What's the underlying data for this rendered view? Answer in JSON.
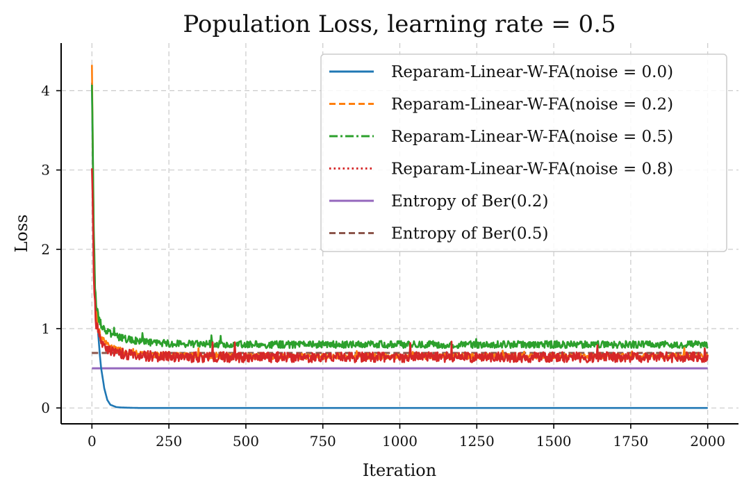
{
  "chart_data": {
    "type": "line",
    "title": "Population Loss, learning rate = 0.5",
    "xlabel": "Iteration",
    "ylabel": "Loss",
    "xlim": [
      -100,
      2100
    ],
    "ylim": [
      -0.2,
      4.6
    ],
    "x_ticks": [
      0,
      250,
      500,
      750,
      1000,
      1250,
      1500,
      1750,
      2000
    ],
    "y_ticks": [
      0,
      1,
      2,
      3,
      4
    ],
    "grid": true,
    "legend_position": "top-right",
    "series": [
      {
        "name": "Reparam-Linear-W-FA(noise = 0.0)",
        "color": "#1f77b4",
        "style": "solid",
        "x": [
          0,
          3,
          6,
          10,
          15,
          20,
          25,
          30,
          40,
          50,
          60,
          80,
          100,
          150,
          300,
          600,
          1000,
          1500,
          2000
        ],
        "y": [
          4.1,
          3.0,
          2.1,
          1.5,
          1.2,
          0.95,
          0.7,
          0.5,
          0.25,
          0.1,
          0.04,
          0.01,
          0.005,
          0.0,
          0.0,
          0.0,
          0.0,
          0.0,
          0.0
        ]
      },
      {
        "name": "Reparam-Linear-W-FA(noise = 0.2)",
        "color": "#ff7f0e",
        "style": "dashed",
        "x": [
          0,
          3,
          6,
          10,
          15,
          20,
          30,
          50,
          80,
          120,
          200,
          300,
          500,
          800,
          1200,
          1600,
          2000
        ],
        "y": [
          4.35,
          3.2,
          2.0,
          1.4,
          1.15,
          1.0,
          0.88,
          0.8,
          0.74,
          0.7,
          0.67,
          0.66,
          0.65,
          0.65,
          0.65,
          0.65,
          0.65
        ]
      },
      {
        "name": "Reparam-Linear-W-FA(noise = 0.5)",
        "color": "#2ca02c",
        "style": "dashdot",
        "x": [
          0,
          3,
          6,
          10,
          15,
          20,
          30,
          50,
          80,
          120,
          200,
          300,
          500,
          800,
          1200,
          1600,
          2000
        ],
        "y": [
          4.1,
          3.3,
          2.2,
          1.55,
          1.3,
          1.15,
          1.05,
          0.96,
          0.9,
          0.86,
          0.82,
          0.81,
          0.8,
          0.8,
          0.8,
          0.8,
          0.8
        ]
      },
      {
        "name": "Reparam-Linear-W-FA(noise = 0.8)",
        "color": "#d62728",
        "style": "dotted",
        "x": [
          0,
          3,
          6,
          10,
          15,
          20,
          30,
          50,
          80,
          120,
          200,
          300,
          500,
          800,
          1200,
          1600,
          2000
        ],
        "y": [
          3.05,
          2.4,
          1.7,
          1.25,
          1.05,
          0.92,
          0.83,
          0.75,
          0.7,
          0.67,
          0.65,
          0.64,
          0.64,
          0.64,
          0.64,
          0.64,
          0.64
        ]
      },
      {
        "name": "Entropy of Ber(0.2)",
        "color": "#9467bd",
        "style": "solid",
        "x": [
          0,
          2000
        ],
        "y": [
          0.5,
          0.5
        ]
      },
      {
        "name": "Entropy of Ber(0.5)",
        "color": "#8c564b",
        "style": "dashed",
        "x": [
          0,
          2000
        ],
        "y": [
          0.693,
          0.693
        ]
      }
    ]
  }
}
